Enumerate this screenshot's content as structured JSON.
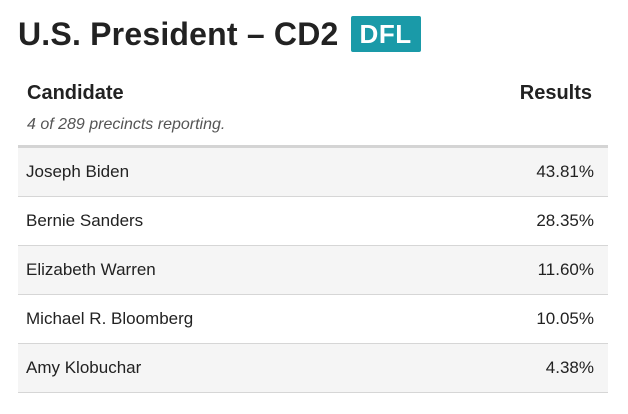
{
  "race": {
    "title": "U.S. President – CD2",
    "party": "DFL",
    "colors": {
      "badge": "#1a9aa8",
      "row_alt": "#f5f5f5"
    }
  },
  "table": {
    "candidate_header": "Candidate",
    "results_header": "Results",
    "precincts_note": "4 of 289 precincts reporting.",
    "rows": [
      {
        "name": "Joseph Biden",
        "pct": "43.81%"
      },
      {
        "name": "Bernie Sanders",
        "pct": "28.35%"
      },
      {
        "name": "Elizabeth Warren",
        "pct": "11.60%"
      },
      {
        "name": "Michael R. Bloomberg",
        "pct": "10.05%"
      },
      {
        "name": "Amy Klobuchar",
        "pct": "4.38%"
      }
    ]
  }
}
